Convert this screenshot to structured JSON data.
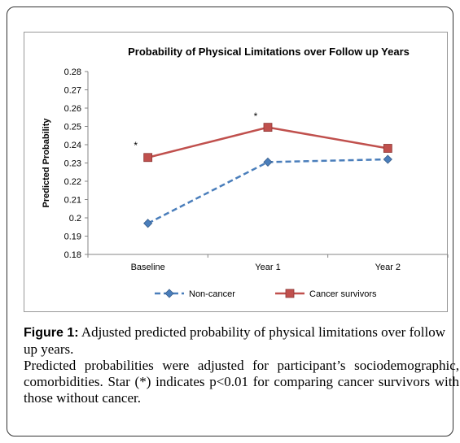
{
  "chart_data": {
    "type": "line",
    "title": "Probability of Physical Limitations over Follow up Years",
    "xlabel": "",
    "ylabel": "Predicted Probability",
    "categories": [
      "Baseline",
      "Year 1",
      "Year 2"
    ],
    "ylim": [
      0.18,
      0.28
    ],
    "yticks": [
      "0.18",
      "0.19",
      "0.2",
      "0.21",
      "0.22",
      "0.23",
      "0.24",
      "0.25",
      "0.26",
      "0.27",
      "0.28"
    ],
    "ytick_values": [
      0.18,
      0.19,
      0.2,
      0.21,
      0.22,
      0.23,
      0.24,
      0.25,
      0.26,
      0.27,
      0.28
    ],
    "series": [
      {
        "name": "Non-cancer",
        "values": [
          0.197,
          0.2305,
          0.232
        ],
        "color": "#4a7ebb",
        "style": "dashed",
        "marker": "diamond"
      },
      {
        "name": "Cancer survivors",
        "values": [
          0.233,
          0.2495,
          0.238
        ],
        "color": "#c0504d",
        "style": "solid",
        "marker": "square"
      }
    ],
    "annotations": [
      {
        "text": "*",
        "category": "Baseline",
        "value": 0.2395
      },
      {
        "text": "*",
        "category": "Year 1",
        "value": 0.2555
      }
    ],
    "grid": false,
    "legend": "bottom"
  },
  "caption": {
    "label": "Figure 1:",
    "title": " Adjusted predicted probability of physical limitations over follow up years.",
    "body": "Predicted probabilities were adjusted for participant’s sociodemographic, comorbidities. Star (*) indicates p<0.01 for comparing cancer survivors with those without cancer."
  }
}
